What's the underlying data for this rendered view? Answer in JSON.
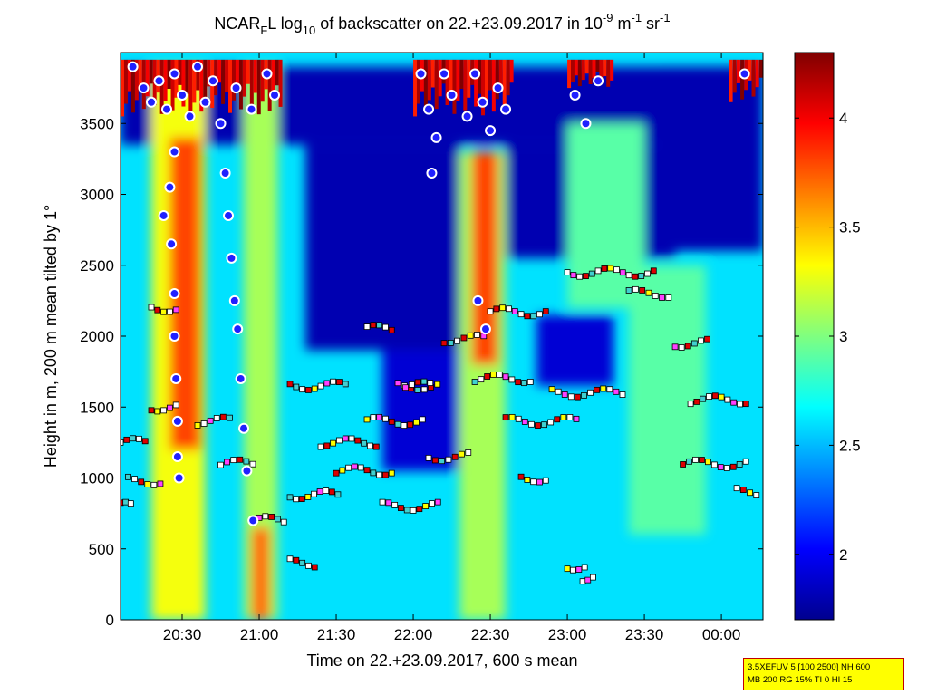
{
  "chart_data": {
    "type": "heatmap",
    "title": {
      "part1": "NCAR",
      "sub1": "F",
      "part2": "L log",
      "sub2": "10",
      "part3": " of backscatter on 22.+23.09.2017 in 10",
      "sup1": "-9",
      "part4": " m",
      "sup2": "-1",
      "part5": " sr",
      "sup3": "-1"
    },
    "xlabel": "Time on 22.+23.09.2017, 600 s mean",
    "ylabel": "Height in m, 200 m mean tilted by 1°",
    "xlim_hours": [
      20.1,
      24.27
    ],
    "ylim": [
      0,
      4000
    ],
    "xticks": [
      {
        "hour": 20.5,
        "label": "20:30"
      },
      {
        "hour": 21.0,
        "label": "21:00"
      },
      {
        "hour": 21.5,
        "label": "21:30"
      },
      {
        "hour": 22.0,
        "label": "22:00"
      },
      {
        "hour": 22.5,
        "label": "22:30"
      },
      {
        "hour": 23.0,
        "label": "23:00"
      },
      {
        "hour": 23.5,
        "label": "23:30"
      },
      {
        "hour": 24.0,
        "label": "00:00"
      }
    ],
    "yticks": [
      0,
      500,
      1000,
      1500,
      2000,
      2500,
      3000,
      3500
    ],
    "colorbar": {
      "colormap": "jet",
      "range": [
        1.7,
        4.3
      ],
      "ticks": [
        "2",
        "2.5",
        "3",
        "3.5",
        "4"
      ],
      "tick_values": [
        2.0,
        2.5,
        3.0,
        3.5,
        4.0
      ]
    },
    "background_level": 2.6,
    "plumes": [
      {
        "t0": 20.3,
        "t1": 20.65,
        "h0": 0,
        "h1": 3900,
        "value": 3.3
      },
      {
        "t0": 20.42,
        "t1": 20.62,
        "h0": 1200,
        "h1": 3400,
        "value": 3.8
      },
      {
        "t0": 20.9,
        "t1": 21.12,
        "h0": 0,
        "h1": 3900,
        "value": 3.1
      },
      {
        "t0": 20.95,
        "t1": 21.07,
        "h0": 0,
        "h1": 650,
        "value": 3.7
      },
      {
        "t0": 22.3,
        "t1": 22.6,
        "h0": 0,
        "h1": 3300,
        "value": 3.1
      },
      {
        "t0": 22.38,
        "t1": 22.55,
        "h0": 1800,
        "h1": 3300,
        "value": 3.8
      },
      {
        "t0": 23.0,
        "t1": 23.5,
        "h0": 2200,
        "h1": 3500,
        "value": 2.9
      },
      {
        "t0": 23.4,
        "t1": 23.9,
        "h0": 600,
        "h1": 2500,
        "value": 2.9
      }
    ],
    "clear_patches": [
      {
        "t0": 20.1,
        "t1": 24.27,
        "h0": 3350,
        "h1": 3900,
        "value": 1.8
      },
      {
        "t0": 21.3,
        "t1": 22.3,
        "h0": 1900,
        "h1": 3350,
        "value": 1.8
      },
      {
        "t0": 22.6,
        "t1": 23.7,
        "h0": 2550,
        "h1": 3350,
        "value": 1.8
      },
      {
        "t0": 23.6,
        "t1": 24.27,
        "h0": 2600,
        "h1": 3900,
        "value": 1.8
      },
      {
        "t0": 21.8,
        "t1": 22.35,
        "h0": 1050,
        "h1": 1900,
        "value": 1.9
      },
      {
        "t0": 22.8,
        "t1": 23.3,
        "h0": 1650,
        "h1": 2150,
        "value": 1.9
      }
    ],
    "cloud_tops": [
      {
        "t0": 20.1,
        "t1": 21.15,
        "h0": 3550,
        "h1": 3950
      },
      {
        "t0": 22.0,
        "t1": 22.65,
        "h0": 3550,
        "h1": 3950
      },
      {
        "t0": 23.0,
        "t1": 23.3,
        "h0": 3750,
        "h1": 3950
      },
      {
        "t0": 24.05,
        "t1": 24.27,
        "h0": 3650,
        "h1": 3950
      }
    ],
    "circle_markers": [
      [
        20.18,
        3900
      ],
      [
        20.25,
        3750
      ],
      [
        20.3,
        3650
      ],
      [
        20.35,
        3800
      ],
      [
        20.4,
        3600
      ],
      [
        20.45,
        3850
      ],
      [
        20.5,
        3700
      ],
      [
        20.55,
        3550
      ],
      [
        20.6,
        3900
      ],
      [
        20.65,
        3650
      ],
      [
        20.7,
        3800
      ],
      [
        20.75,
        3500
      ],
      [
        20.85,
        3750
      ],
      [
        20.95,
        3600
      ],
      [
        21.05,
        3850
      ],
      [
        21.1,
        3700
      ],
      [
        20.45,
        3300
      ],
      [
        20.42,
        3050
      ],
      [
        20.38,
        2850
      ],
      [
        20.43,
        2650
      ],
      [
        20.45,
        2300
      ],
      [
        20.45,
        2000
      ],
      [
        20.46,
        1700
      ],
      [
        20.47,
        1400
      ],
      [
        20.47,
        1150
      ],
      [
        20.48,
        1000
      ],
      [
        20.78,
        3150
      ],
      [
        20.8,
        2850
      ],
      [
        20.82,
        2550
      ],
      [
        20.84,
        2250
      ],
      [
        20.86,
        2050
      ],
      [
        20.88,
        1700
      ],
      [
        20.9,
        1350
      ],
      [
        20.92,
        1050
      ],
      [
        20.96,
        700
      ],
      [
        22.05,
        3850
      ],
      [
        22.1,
        3600
      ],
      [
        22.15,
        3400
      ],
      [
        22.12,
        3150
      ],
      [
        22.2,
        3850
      ],
      [
        22.25,
        3700
      ],
      [
        22.35,
        3550
      ],
      [
        22.4,
        3850
      ],
      [
        22.45,
        3650
      ],
      [
        22.5,
        3450
      ],
      [
        22.55,
        3750
      ],
      [
        22.6,
        3600
      ],
      [
        22.42,
        2250
      ],
      [
        22.47,
        2050
      ],
      [
        23.05,
        3700
      ],
      [
        23.12,
        3500
      ],
      [
        23.2,
        3800
      ],
      [
        24.15,
        3850
      ]
    ],
    "square_markers": [
      {
        "t0": 20.1,
        "t1": 20.3,
        "h": 1250
      },
      {
        "t0": 20.1,
        "t1": 20.2,
        "h": 800
      },
      {
        "t0": 20.15,
        "t1": 20.4,
        "h": 980
      },
      {
        "t0": 20.3,
        "t1": 20.5,
        "h": 2200
      },
      {
        "t0": 20.3,
        "t1": 20.5,
        "h": 1500
      },
      {
        "t0": 20.6,
        "t1": 20.85,
        "h": 1400
      },
      {
        "t0": 20.75,
        "t1": 21.0,
        "h": 1100
      },
      {
        "t0": 21.0,
        "t1": 21.2,
        "h": 700
      },
      {
        "t0": 21.2,
        "t1": 21.4,
        "h": 400
      },
      {
        "t0": 21.2,
        "t1": 21.6,
        "h": 1650
      },
      {
        "t0": 21.2,
        "t1": 21.55,
        "h": 880
      },
      {
        "t0": 21.4,
        "t1": 21.8,
        "h": 1250
      },
      {
        "t0": 21.5,
        "t1": 21.9,
        "h": 1050
      },
      {
        "t0": 21.7,
        "t1": 22.1,
        "h": 1400
      },
      {
        "t0": 21.8,
        "t1": 22.2,
        "h": 800
      },
      {
        "t0": 21.9,
        "t1": 22.2,
        "h": 1650
      },
      {
        "t0": 22.1,
        "t1": 22.4,
        "h": 1150
      },
      {
        "t0": 22.2,
        "t1": 22.5,
        "h": 1980
      },
      {
        "t0": 22.4,
        "t1": 22.8,
        "h": 1700
      },
      {
        "t0": 22.5,
        "t1": 22.9,
        "h": 2170
      },
      {
        "t0": 22.6,
        "t1": 23.1,
        "h": 1400
      },
      {
        "t0": 22.9,
        "t1": 23.4,
        "h": 1600
      },
      {
        "t0": 23.0,
        "t1": 23.6,
        "h": 2450
      },
      {
        "t0": 23.7,
        "t1": 23.95,
        "h": 1950
      },
      {
        "t0": 23.8,
        "t1": 24.2,
        "h": 1550
      },
      {
        "t0": 23.75,
        "t1": 24.2,
        "h": 1100
      },
      {
        "t0": 23.4,
        "t1": 23.7,
        "h": 2300
      },
      {
        "t0": 24.1,
        "t1": 24.27,
        "h": 900
      },
      {
        "t0": 22.7,
        "t1": 22.9,
        "h": 1000
      },
      {
        "t0": 23.0,
        "t1": 23.15,
        "h": 380
      },
      {
        "t0": 23.1,
        "t1": 23.2,
        "h": 300
      },
      {
        "t0": 21.95,
        "t1": 22.15,
        "h": 1650
      },
      {
        "t0": 21.7,
        "t1": 21.9,
        "h": 2050
      }
    ]
  },
  "info_box": {
    "line1": "3.5XEFUV 5 [100 2500] NH 600",
    "line2": "MB 200 RG 15% TI 0 HI 15"
  }
}
